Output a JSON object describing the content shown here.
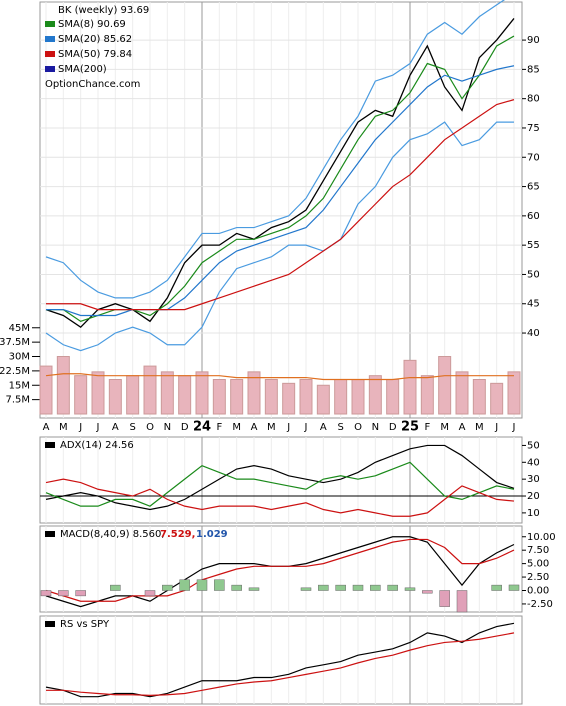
{
  "chart_data": [
    {
      "type": "line",
      "title": "BK (weekly) 93.69",
      "subtitle": "OptionChance.com",
      "categories": [
        "A",
        "M",
        "J",
        "J",
        "A",
        "S",
        "O",
        "N",
        "D",
        "24",
        "F",
        "M",
        "A",
        "M",
        "J",
        "J",
        "A",
        "S",
        "O",
        "N",
        "D",
        "25",
        "F",
        "M",
        "A",
        "M",
        "J",
        "J"
      ],
      "series": [
        {
          "color": "#000000",
          "values": [
            44,
            43,
            41,
            44,
            45,
            44,
            42,
            46,
            52,
            55,
            55,
            57,
            56,
            58,
            59,
            61,
            66,
            71,
            76,
            78,
            77,
            84,
            89,
            82,
            78,
            87,
            90,
            93.69
          ]
        },
        {
          "color": "#4a9be0",
          "values": [
            53,
            52,
            49,
            47,
            46,
            46,
            47,
            49,
            53,
            57,
            57,
            58,
            58,
            59,
            60,
            63,
            68,
            73,
            77,
            83,
            84,
            86,
            91,
            93,
            91,
            94,
            96,
            98
          ]
        },
        {
          "color": "#4a9be0",
          "values": [
            40,
            38,
            37,
            38,
            40,
            41,
            40,
            38,
            38,
            41,
            47,
            51,
            52,
            53,
            55,
            55,
            54,
            56,
            62,
            65,
            70,
            73,
            74,
            76,
            72,
            73,
            76,
            76
          ]
        },
        {
          "name": "SMA(8) 90.69",
          "color": "#1a8a1a",
          "values": [
            44,
            44,
            42,
            43,
            44,
            44,
            43,
            45,
            48,
            52,
            54,
            56,
            56,
            57,
            58,
            60,
            63,
            68,
            73,
            77,
            78,
            81,
            86,
            85,
            80,
            84,
            89,
            90.69
          ]
        },
        {
          "name": "SMA(20) 85.62",
          "color": "#2277cc",
          "values": [
            44,
            44,
            43,
            43,
            43,
            44,
            44,
            44,
            46,
            49,
            52,
            54,
            55,
            56,
            57,
            58,
            61,
            65,
            69,
            73,
            76,
            79,
            82,
            84,
            83,
            84,
            85,
            85.62
          ]
        },
        {
          "name": "SMA(50) 79.84",
          "color": "#cc1111",
          "values": [
            45,
            45,
            45,
            44,
            44,
            44,
            44,
            44,
            44,
            45,
            46,
            47,
            48,
            49,
            50,
            52,
            54,
            56,
            59,
            62,
            65,
            67,
            70,
            73,
            75,
            77,
            79,
            79.84
          ]
        },
        {
          "name": "SMA(200)",
          "color": "#1a1aa0"
        }
      ],
      "ylim": [
        25.5,
        96.5
      ],
      "yticks": [
        40,
        45,
        50,
        55,
        60,
        65,
        70,
        75,
        80,
        85,
        90
      ],
      "grid": true
    },
    {
      "type": "bar",
      "color": "#e8b4bc",
      "values": [
        25,
        30,
        20,
        22,
        18,
        20,
        25,
        22,
        20,
        22,
        18,
        18,
        22,
        18,
        16,
        18,
        15,
        18,
        18,
        20,
        18,
        28,
        20,
        30,
        22,
        18,
        16,
        22
      ],
      "series": [
        {
          "color": "#e07020",
          "values": [
            20,
            21,
            21,
            20,
            20,
            20,
            20,
            20,
            20,
            20,
            20,
            19,
            19,
            19,
            19,
            19,
            18,
            18,
            18,
            18,
            18,
            19,
            19,
            20,
            20,
            20,
            20,
            20
          ]
        }
      ],
      "ylim": [
        0,
        215
      ],
      "yticks": [
        {
          "value": 7.5,
          "label": "7.5M"
        },
        {
          "value": 15,
          "label": "15M"
        },
        {
          "value": 22.5,
          "label": "22.5M"
        },
        {
          "value": 30,
          "label": "30M"
        },
        {
          "value": 37.5,
          "label": "37.5M"
        },
        {
          "value": 45,
          "label": "45M"
        }
      ]
    },
    {
      "type": "line",
      "title": "ADX(14) 24.56",
      "series": [
        {
          "color": "#000000",
          "values": [
            18,
            20,
            22,
            20,
            16,
            14,
            12,
            14,
            18,
            24,
            30,
            36,
            38,
            36,
            32,
            30,
            28,
            30,
            34,
            40,
            44,
            48,
            50,
            50,
            44,
            36,
            28,
            24.56
          ]
        },
        {
          "color": "#1a8a1a",
          "values": [
            22,
            18,
            14,
            14,
            18,
            18,
            14,
            22,
            30,
            38,
            34,
            30,
            30,
            28,
            26,
            24,
            30,
            32,
            30,
            32,
            36,
            40,
            30,
            20,
            18,
            22,
            26,
            24
          ]
        },
        {
          "color": "#cc1111",
          "values": [
            28,
            30,
            28,
            24,
            22,
            20,
            24,
            18,
            14,
            12,
            14,
            14,
            14,
            12,
            14,
            16,
            12,
            10,
            12,
            10,
            8,
            8,
            10,
            18,
            26,
            22,
            18,
            17
          ]
        }
      ],
      "reference": 20,
      "ylim": [
        4,
        55
      ],
      "yticks": [
        10,
        20,
        30,
        40,
        50
      ]
    },
    {
      "type": "line",
      "title": "MACD(8,40,9) 8.560,",
      "annotations": [
        {
          "text": "7.529,",
          "color": "#cc1111"
        },
        {
          "text": "1.029",
          "color": "#2255aa"
        }
      ],
      "series": [
        {
          "color": "#000000",
          "values": [
            -1,
            -2,
            -3,
            -2,
            -1,
            -1,
            -2,
            0,
            2,
            4,
            5,
            5,
            5,
            4.5,
            4.5,
            5,
            6,
            7,
            8,
            9,
            10,
            10,
            9,
            5,
            1,
            5,
            7,
            8.56
          ]
        },
        {
          "color": "#cc1111",
          "values": [
            0,
            -1,
            -2,
            -2,
            -2,
            -1,
            -1,
            -1,
            0,
            2,
            3,
            4,
            4.5,
            4.5,
            4.5,
            4.5,
            5,
            6,
            7,
            8,
            9,
            9.5,
            9.5,
            8,
            5,
            5,
            6,
            7.53
          ]
        },
        {
          "color": "#8fc88f",
          "style": "bar",
          "values": [
            -1,
            -1,
            -1,
            0,
            1,
            0,
            -1,
            1,
            2,
            2,
            2,
            1,
            0.5,
            0,
            0,
            0.5,
            1,
            1,
            1,
            1,
            1,
            0.5,
            -0.5,
            -3,
            -4,
            0,
            1,
            1.03
          ]
        }
      ],
      "ylim": [
        -4,
        12
      ],
      "yticks": [
        {
          "value": -2.5,
          "label": "-2.50"
        },
        {
          "value": 0,
          "label": "0.00"
        },
        {
          "value": 2.5,
          "label": "2.50"
        },
        {
          "value": 5,
          "label": "5.00"
        },
        {
          "value": 7.5,
          "label": "7.50"
        },
        {
          "value": 10,
          "label": "10.00"
        }
      ]
    },
    {
      "type": "line",
      "title": "RS vs SPY",
      "series": [
        {
          "color": "#000000",
          "values": [
            1.0,
            0.95,
            0.85,
            0.85,
            0.9,
            0.9,
            0.85,
            0.9,
            1.0,
            1.1,
            1.1,
            1.1,
            1.15,
            1.15,
            1.2,
            1.3,
            1.35,
            1.4,
            1.5,
            1.55,
            1.6,
            1.7,
            1.85,
            1.8,
            1.7,
            1.85,
            1.95,
            2.0
          ]
        },
        {
          "color": "#cc1111",
          "values": [
            0.95,
            0.95,
            0.92,
            0.9,
            0.88,
            0.88,
            0.87,
            0.88,
            0.9,
            0.95,
            1.0,
            1.05,
            1.08,
            1.1,
            1.15,
            1.2,
            1.25,
            1.3,
            1.38,
            1.45,
            1.5,
            1.58,
            1.65,
            1.7,
            1.72,
            1.75,
            1.8,
            1.85
          ]
        }
      ]
    }
  ]
}
